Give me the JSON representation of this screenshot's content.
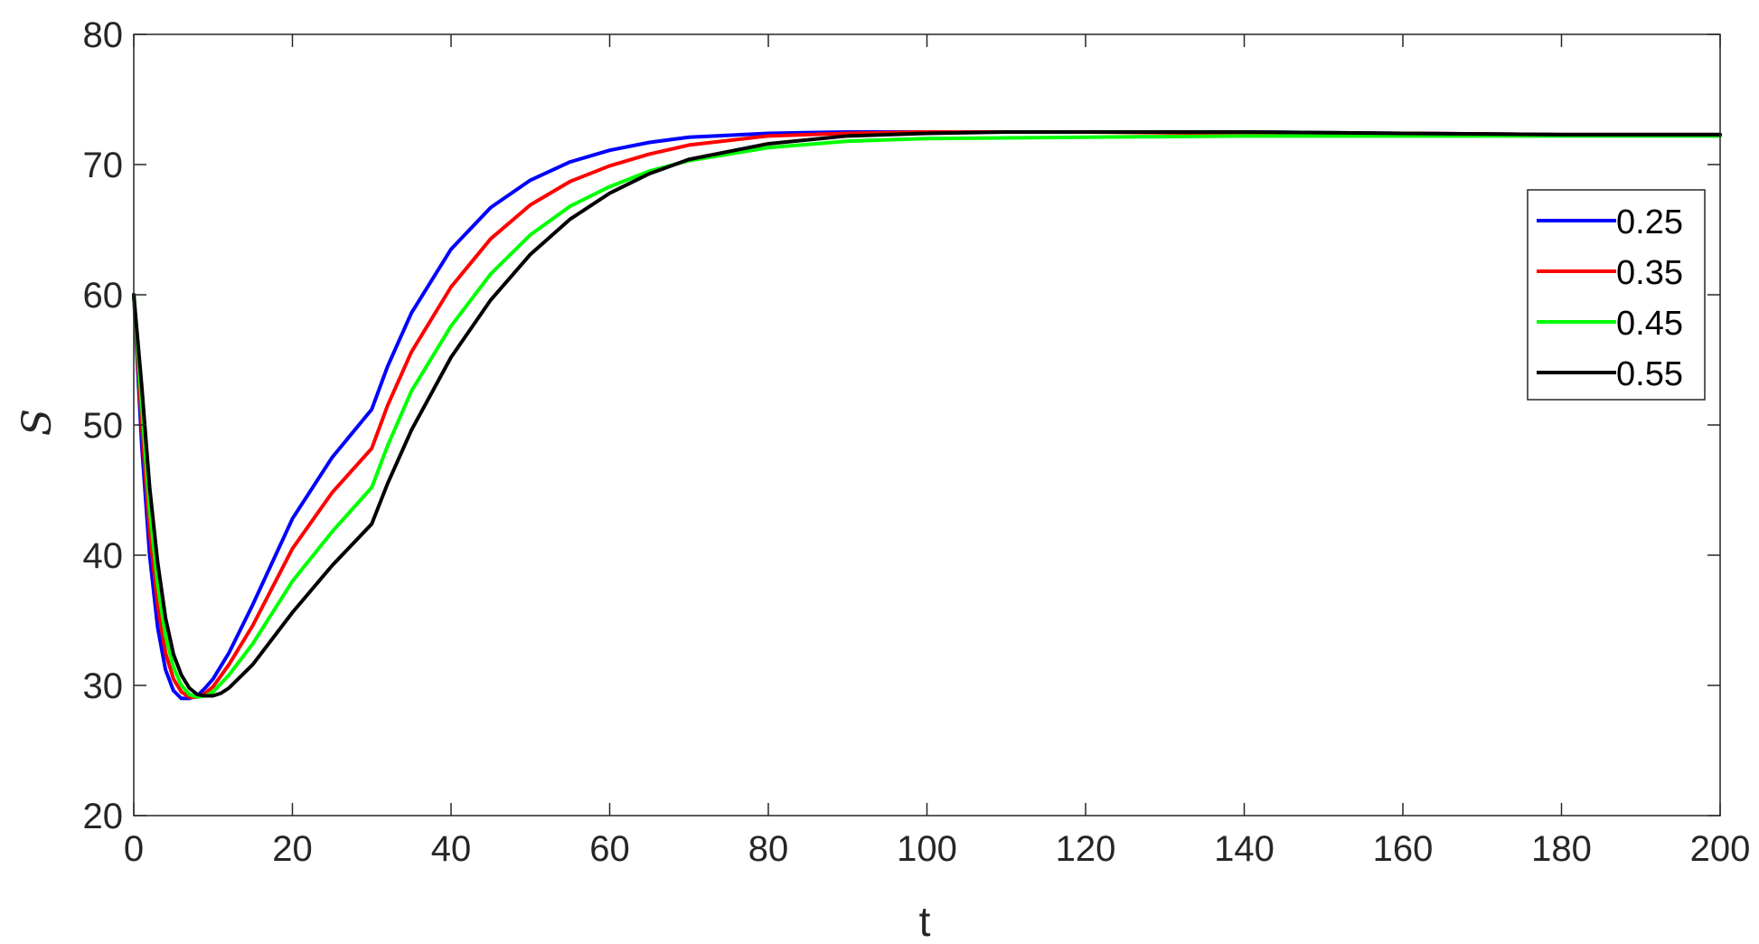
{
  "chart_data": {
    "type": "line",
    "xlabel": "t",
    "ylabel": "S",
    "xlim": [
      0,
      200
    ],
    "ylim": [
      20,
      80
    ],
    "xticks": [
      0,
      20,
      40,
      60,
      80,
      100,
      120,
      140,
      160,
      180,
      200
    ],
    "yticks": [
      20,
      30,
      40,
      50,
      60,
      70,
      80
    ],
    "grid": false,
    "box": true,
    "legend_position": "right",
    "series": [
      {
        "name": "0.25",
        "color": "#0000ff",
        "x": [
          0,
          1,
          2,
          3,
          4,
          5,
          6,
          7,
          8,
          9,
          10,
          12,
          15,
          20,
          25,
          30,
          32,
          35,
          40,
          45,
          50,
          55,
          60,
          65,
          70,
          80,
          90,
          100,
          120,
          140,
          160,
          180,
          200
        ],
        "y": [
          60,
          48.5,
          40,
          34.5,
          31.2,
          29.6,
          29.0,
          29.0,
          29.2,
          29.8,
          30.5,
          32.5,
          36.2,
          42.8,
          47.5,
          51.2,
          54.5,
          58.6,
          63.5,
          66.7,
          68.8,
          70.2,
          71.1,
          71.7,
          72.1,
          72.4,
          72.5,
          72.5,
          72.5,
          72.5,
          72.4,
          72.3,
          72.3
        ]
      },
      {
        "name": "0.35",
        "color": "#ff0000",
        "x": [
          0,
          1,
          2,
          3,
          4,
          5,
          6,
          7,
          8,
          9,
          10,
          12,
          15,
          20,
          25,
          30,
          32,
          35,
          40,
          45,
          50,
          55,
          60,
          65,
          70,
          80,
          90,
          100,
          120,
          140,
          160,
          180,
          200
        ],
        "y": [
          60,
          50,
          41.8,
          36.2,
          32.5,
          30.5,
          29.5,
          29.1,
          29.1,
          29.4,
          29.9,
          31.6,
          34.6,
          40.5,
          44.8,
          48.2,
          51.5,
          55.6,
          60.6,
          64.3,
          66.9,
          68.7,
          69.9,
          70.8,
          71.5,
          72.2,
          72.4,
          72.5,
          72.5,
          72.4,
          72.4,
          72.3,
          72.3
        ]
      },
      {
        "name": "0.45",
        "color": "#00ff00",
        "x": [
          0,
          1,
          2,
          3,
          4,
          5,
          6,
          7,
          8,
          9,
          10,
          12,
          15,
          20,
          25,
          30,
          32,
          35,
          40,
          45,
          50,
          55,
          60,
          65,
          70,
          80,
          90,
          100,
          120,
          140,
          160,
          180,
          200
        ],
        "y": [
          60,
          51.5,
          43.5,
          37.8,
          33.8,
          31.4,
          30.0,
          29.3,
          29.1,
          29.2,
          29.5,
          30.8,
          33.2,
          38.0,
          41.8,
          45.2,
          48.4,
          52.6,
          57.6,
          61.6,
          64.6,
          66.8,
          68.3,
          69.5,
          70.3,
          71.3,
          71.8,
          72.0,
          72.1,
          72.2,
          72.2,
          72.2,
          72.2
        ]
      },
      {
        "name": "0.55",
        "color": "#000000",
        "x": [
          0,
          1,
          2,
          3,
          4,
          5,
          6,
          7,
          8,
          9,
          10,
          11,
          12,
          15,
          20,
          25,
          30,
          32,
          35,
          40,
          45,
          50,
          55,
          60,
          65,
          70,
          80,
          90,
          100,
          110,
          120,
          140,
          160,
          180,
          200
        ],
        "y": [
          60,
          53,
          45.2,
          39.5,
          35.2,
          32.4,
          30.8,
          29.8,
          29.3,
          29.2,
          29.2,
          29.4,
          29.8,
          31.6,
          35.6,
          39.2,
          42.4,
          45.5,
          49.6,
          55.2,
          59.6,
          63.1,
          65.8,
          67.8,
          69.3,
          70.4,
          71.6,
          72.2,
          72.4,
          72.5,
          72.5,
          72.5,
          72.4,
          72.3,
          72.3
        ]
      }
    ]
  }
}
